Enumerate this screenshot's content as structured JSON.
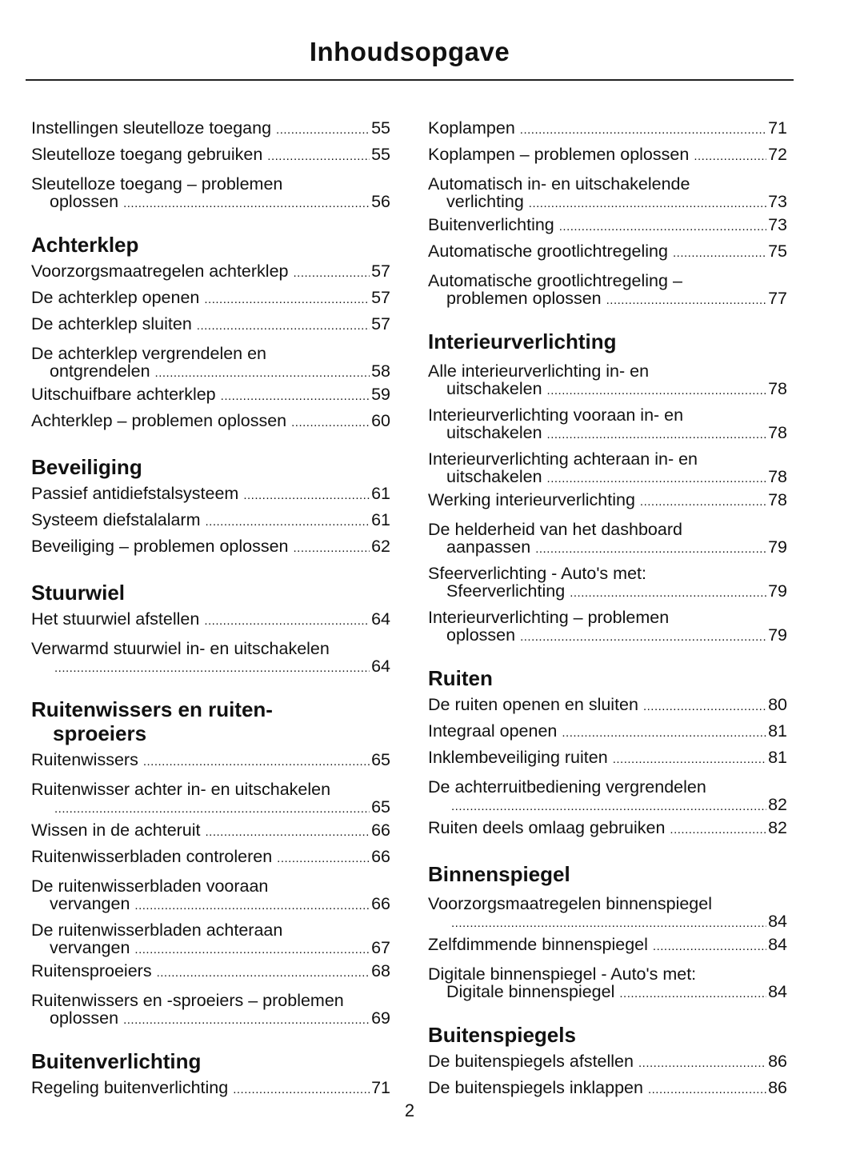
{
  "title": "Inhoudsopgave",
  "page_number": "2",
  "columns": [
    [
      {
        "type": "entry",
        "text": "Instellingen sleutelloze toegang",
        "page": "55"
      },
      {
        "type": "entry",
        "text": "Sleutelloze toegang gebruiken",
        "page": "55"
      },
      {
        "type": "entry",
        "text": "Sleutelloze toegang – problemen",
        "cont": "oplossen",
        "page": "56"
      },
      {
        "type": "heading",
        "text": "Achterklep"
      },
      {
        "type": "entry",
        "text": "Voorzorgsmaatregelen achterklep",
        "page": "57"
      },
      {
        "type": "entry",
        "text": "De achterklep openen",
        "page": "57"
      },
      {
        "type": "entry",
        "text": "De achterklep sluiten",
        "page": "57"
      },
      {
        "type": "entry",
        "text": "De achterklep vergrendelen en",
        "cont": "ontgrendelen",
        "page": "58"
      },
      {
        "type": "entry",
        "text": "Uitschuifbare achterklep",
        "page": "59"
      },
      {
        "type": "entry",
        "text": "Achterklep – problemen oplossen",
        "page": "60"
      },
      {
        "type": "heading",
        "text": "Beveiliging"
      },
      {
        "type": "entry",
        "text": "Passief antidiefstalsysteem",
        "page": "61"
      },
      {
        "type": "entry",
        "text": "Systeem diefstalalarm",
        "page": "61"
      },
      {
        "type": "entry",
        "text": "Beveiliging – problemen oplossen",
        "page": "62"
      },
      {
        "type": "heading",
        "text": "Stuurwiel"
      },
      {
        "type": "entry",
        "text": "Het stuurwiel afstellen",
        "page": "64"
      },
      {
        "type": "entry",
        "text": "Verwarmd stuurwiel in- en uitschakelen",
        "cont": "",
        "page": "64"
      },
      {
        "type": "heading",
        "text": "Ruitenwissers en ruiten-",
        "text2": "sproeiers"
      },
      {
        "type": "entry",
        "text": "Ruitenwissers",
        "page": "65"
      },
      {
        "type": "entry",
        "text": "Ruitenwisser achter in- en uitschakelen",
        "cont": "",
        "page": "65"
      },
      {
        "type": "entry",
        "text": "Wissen in de achteruit",
        "page": "66"
      },
      {
        "type": "entry",
        "text": "Ruitenwisserbladen controleren",
        "page": "66"
      },
      {
        "type": "entry",
        "text": "De ruitenwisserbladen vooraan",
        "cont": "vervangen",
        "page": "66"
      },
      {
        "type": "entry",
        "text": "De ruitenwisserbladen achteraan",
        "cont": "vervangen",
        "page": "67"
      },
      {
        "type": "entry",
        "text": "Ruitensproeiers",
        "page": "68"
      },
      {
        "type": "entry",
        "text": "Ruitenwissers en -sproeiers – problemen",
        "cont": "oplossen",
        "page": "69"
      },
      {
        "type": "heading",
        "text": "Buitenverlichting"
      },
      {
        "type": "entry",
        "text": "Regeling buitenverlichting",
        "page": "71"
      }
    ],
    [
      {
        "type": "entry",
        "text": "Koplampen",
        "page": "71"
      },
      {
        "type": "entry",
        "text": "Koplampen – problemen oplossen",
        "page": "72"
      },
      {
        "type": "entry",
        "text": "Automatisch in- en uitschakelende",
        "cont": "verlichting",
        "page": "73"
      },
      {
        "type": "entry",
        "text": "Buitenverlichting",
        "page": "73"
      },
      {
        "type": "entry",
        "text": "Automatische grootlichtregeling",
        "page": "75"
      },
      {
        "type": "entry",
        "text": "Automatische grootlichtregeling –",
        "cont": "problemen oplossen",
        "page": "77"
      },
      {
        "type": "heading",
        "text": "Interieurverlichting"
      },
      {
        "type": "entry",
        "text": "Alle interieurverlichting in- en",
        "cont": "uitschakelen",
        "page": "78"
      },
      {
        "type": "entry",
        "text": "Interieurverlichting vooraan in- en",
        "cont": "uitschakelen",
        "page": "78"
      },
      {
        "type": "entry",
        "text": "Interieurverlichting achteraan in- en",
        "cont": "uitschakelen",
        "page": "78"
      },
      {
        "type": "entry",
        "text": "Werking interieurverlichting",
        "page": "78"
      },
      {
        "type": "entry",
        "text": "De helderheid van het dashboard",
        "cont": "aanpassen",
        "page": "79"
      },
      {
        "type": "entry",
        "text": "Sfeerverlichting - Auto's met:",
        "cont": "Sfeerverlichting",
        "page": "79"
      },
      {
        "type": "entry",
        "text": "Interieurverlichting – problemen",
        "cont": "oplossen",
        "page": "79"
      },
      {
        "type": "heading",
        "text": "Ruiten"
      },
      {
        "type": "entry",
        "text": "De ruiten openen en sluiten",
        "page": "80"
      },
      {
        "type": "entry",
        "text": "Integraal openen",
        "page": "81"
      },
      {
        "type": "entry",
        "text": "Inklembeveiliging ruiten",
        "page": "81"
      },
      {
        "type": "entry",
        "text": "De achterruitbediening vergrendelen",
        "cont": "",
        "page": "82"
      },
      {
        "type": "entry",
        "text": "Ruiten deels omlaag gebruiken",
        "page": "82"
      },
      {
        "type": "heading",
        "text": "Binnenspiegel"
      },
      {
        "type": "entry",
        "text": "Voorzorgsmaatregelen binnenspiegel",
        "cont": "",
        "page": "84"
      },
      {
        "type": "entry",
        "text": "Zelfdimmende binnenspiegel",
        "page": "84"
      },
      {
        "type": "entry",
        "text": "Digitale binnenspiegel - Auto's met:",
        "cont": "Digitale binnenspiegel",
        "page": "84"
      },
      {
        "type": "heading",
        "text": "Buitenspiegels"
      },
      {
        "type": "entry",
        "text": "De buitenspiegels afstellen",
        "page": "86"
      },
      {
        "type": "entry",
        "text": "De buitenspiegels inklappen",
        "page": "86"
      }
    ]
  ]
}
